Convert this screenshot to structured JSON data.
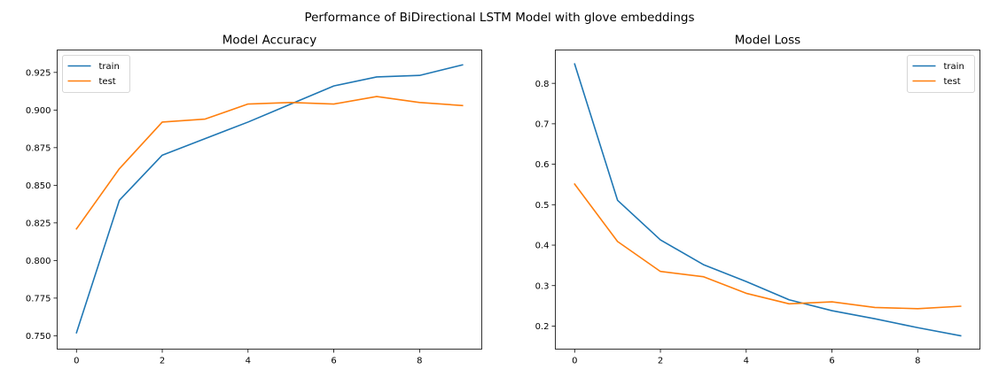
{
  "suptitle": "Performance of BiDirectional LSTM Model with glove embeddings",
  "chart_data": [
    {
      "type": "line",
      "title": "Model Accuracy",
      "xlabel": "",
      "ylabel": "",
      "x": [
        0,
        1,
        2,
        3,
        4,
        5,
        6,
        7,
        8,
        9
      ],
      "xlim": [
        -0.45,
        9.45
      ],
      "ylim": [
        0.7411,
        0.9399
      ],
      "xticks": [
        0,
        2,
        4,
        6,
        8
      ],
      "xtick_labels": [
        "0",
        "2",
        "4",
        "6",
        "8"
      ],
      "yticks": [
        0.75,
        0.775,
        0.8,
        0.825,
        0.85,
        0.875,
        0.9,
        0.925
      ],
      "ytick_labels": [
        "0.750",
        "0.775",
        "0.800",
        "0.825",
        "0.850",
        "0.875",
        "0.900",
        "0.925"
      ],
      "grid": false,
      "legend_position": "top-left",
      "series": [
        {
          "name": "train",
          "color": "#1f77b4",
          "values": [
            0.752,
            0.84,
            0.87,
            0.881,
            0.892,
            0.904,
            0.916,
            0.922,
            0.923,
            0.93
          ]
        },
        {
          "name": "test",
          "color": "#ff7f0e",
          "values": [
            0.821,
            0.861,
            0.892,
            0.894,
            0.904,
            0.905,
            0.904,
            0.909,
            0.905,
            0.903
          ]
        }
      ]
    },
    {
      "type": "line",
      "title": "Model Loss",
      "xlabel": "",
      "ylabel": "",
      "x": [
        0,
        1,
        2,
        3,
        4,
        5,
        6,
        7,
        8,
        9
      ],
      "xlim": [
        -0.45,
        9.45
      ],
      "ylim": [
        0.143,
        0.8824
      ],
      "xticks": [
        0,
        2,
        4,
        6,
        8
      ],
      "xtick_labels": [
        "0",
        "2",
        "4",
        "6",
        "8"
      ],
      "yticks": [
        0.2,
        0.3,
        0.4,
        0.5,
        0.6,
        0.7,
        0.8
      ],
      "ytick_labels": [
        "0.2",
        "0.3",
        "0.4",
        "0.5",
        "0.6",
        "0.7",
        "0.8"
      ],
      "grid": false,
      "legend_position": "top-right",
      "series": [
        {
          "name": "train",
          "color": "#1f77b4",
          "values": [
            0.848,
            0.511,
            0.413,
            0.352,
            0.31,
            0.265,
            0.238,
            0.218,
            0.196,
            0.176
          ]
        },
        {
          "name": "test",
          "color": "#ff7f0e",
          "values": [
            0.551,
            0.409,
            0.335,
            0.322,
            0.281,
            0.255,
            0.26,
            0.246,
            0.243,
            0.249
          ]
        }
      ]
    }
  ]
}
